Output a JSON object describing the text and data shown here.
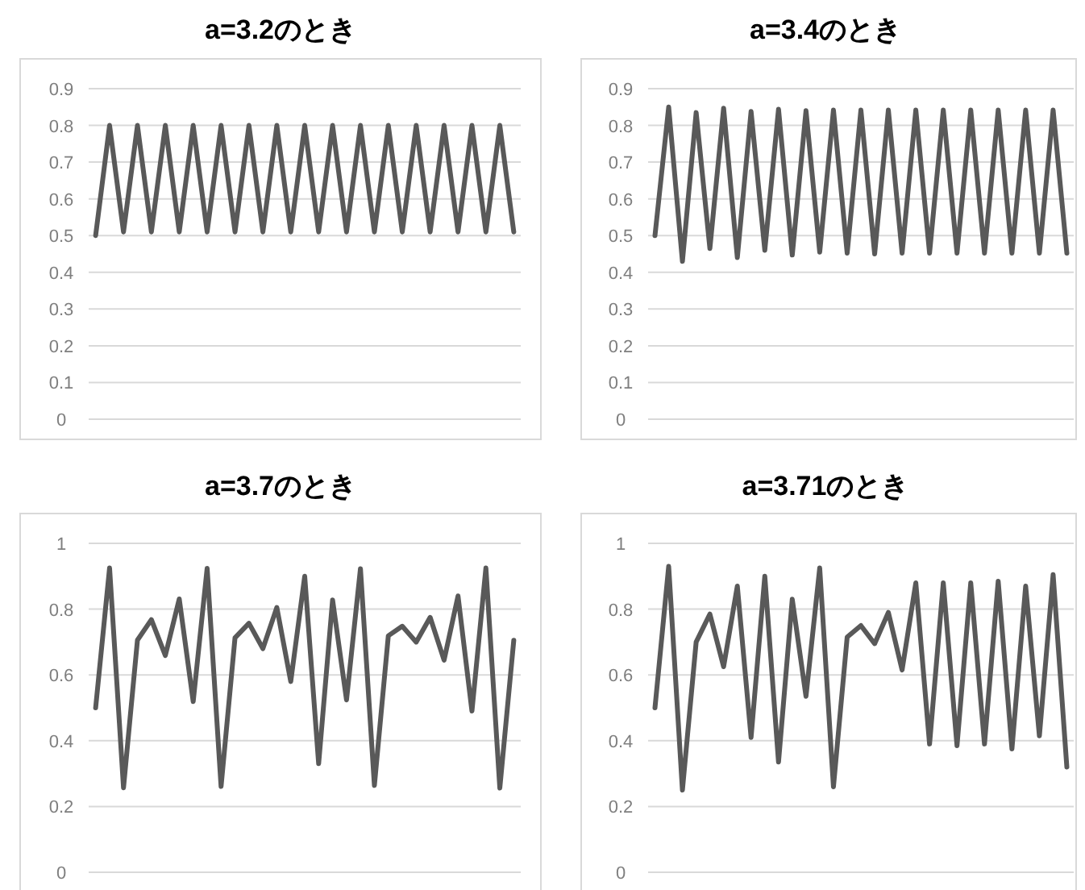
{
  "chart_data": [
    {
      "type": "line",
      "title": "a=3.2のとき",
      "categories": [
        null,
        null,
        null,
        null,
        null,
        null,
        null,
        null,
        null,
        null,
        null,
        null,
        null,
        null,
        null,
        null,
        null,
        null,
        null,
        null,
        null,
        null,
        null,
        null,
        null,
        null,
        null,
        null,
        null,
        null,
        null
      ],
      "series": [
        {
          "color": "#595959",
          "values": [
            0.5,
            0.8,
            0.51,
            0.8,
            0.51,
            0.8,
            0.51,
            0.8,
            0.51,
            0.8,
            0.51,
            0.8,
            0.51,
            0.8,
            0.51,
            0.8,
            0.51,
            0.8,
            0.51,
            0.8,
            0.51,
            0.8,
            0.51,
            0.8,
            0.51,
            0.8,
            0.51,
            0.8,
            0.51,
            0.8,
            0.51
          ]
        }
      ],
      "ylim": [
        0,
        0.9
      ],
      "yticks": [
        0,
        0.1,
        0.2,
        0.3,
        0.4,
        0.5,
        0.6,
        0.7,
        0.8,
        0.9
      ],
      "grid": "y",
      "tick_labels": "y"
    },
    {
      "type": "line",
      "title": "a=3.4のとき",
      "categories": [
        null,
        null,
        null,
        null,
        null,
        null,
        null,
        null,
        null,
        null,
        null,
        null,
        null,
        null,
        null,
        null,
        null,
        null,
        null,
        null,
        null,
        null,
        null,
        null,
        null,
        null,
        null,
        null,
        null,
        null,
        null
      ],
      "series": [
        {
          "color": "#595959",
          "values": [
            0.5,
            0.85,
            0.43,
            0.835,
            0.465,
            0.847,
            0.44,
            0.838,
            0.46,
            0.844,
            0.447,
            0.84,
            0.455,
            0.842,
            0.452,
            0.842,
            0.45,
            0.842,
            0.452,
            0.842,
            0.452,
            0.842,
            0.452,
            0.842,
            0.452,
            0.842,
            0.452,
            0.842,
            0.452,
            0.842,
            0.452
          ]
        }
      ],
      "ylim": [
        0,
        0.9
      ],
      "yticks": [
        0,
        0.1,
        0.2,
        0.3,
        0.4,
        0.5,
        0.6,
        0.7,
        0.8,
        0.9
      ],
      "grid": "y",
      "tick_labels": "y"
    },
    {
      "type": "line",
      "title": "a=3.7のとき",
      "categories": [
        null,
        null,
        null,
        null,
        null,
        null,
        null,
        null,
        null,
        null,
        null,
        null,
        null,
        null,
        null,
        null,
        null,
        null,
        null,
        null,
        null,
        null,
        null,
        null,
        null,
        null,
        null,
        null,
        null,
        null,
        null
      ],
      "series": [
        {
          "color": "#595959",
          "values": [
            0.5,
            0.925,
            0.257,
            0.706,
            0.768,
            0.659,
            0.831,
            0.519,
            0.924,
            0.261,
            0.713,
            0.757,
            0.68,
            0.805,
            0.58,
            0.9,
            0.33,
            0.828,
            0.524,
            0.923,
            0.264,
            0.719,
            0.748,
            0.7,
            0.775,
            0.645,
            0.84,
            0.49,
            0.925,
            0.256,
            0.705
          ]
        }
      ],
      "ylim": [
        0,
        1
      ],
      "yticks": [
        0,
        0.2,
        0.4,
        0.6,
        0.8,
        1
      ],
      "grid": "y",
      "tick_labels": "y"
    },
    {
      "type": "line",
      "title": "a=3.71のとき",
      "categories": [
        null,
        null,
        null,
        null,
        null,
        null,
        null,
        null,
        null,
        null,
        null,
        null,
        null,
        null,
        null,
        null,
        null,
        null,
        null,
        null,
        null,
        null,
        null,
        null,
        null,
        null,
        null,
        null,
        null,
        null,
        null
      ],
      "series": [
        {
          "color": "#595959",
          "values": [
            0.5,
            0.93,
            0.25,
            0.7,
            0.785,
            0.625,
            0.87,
            0.41,
            0.9,
            0.335,
            0.83,
            0.535,
            0.925,
            0.26,
            0.715,
            0.75,
            0.695,
            0.79,
            0.615,
            0.88,
            0.39,
            0.88,
            0.385,
            0.88,
            0.39,
            0.885,
            0.375,
            0.87,
            0.415,
            0.905,
            0.32
          ]
        }
      ],
      "ylim": [
        0,
        1
      ],
      "yticks": [
        0,
        0.2,
        0.4,
        0.6,
        0.8,
        1
      ],
      "grid": "y",
      "tick_labels": "y"
    }
  ]
}
